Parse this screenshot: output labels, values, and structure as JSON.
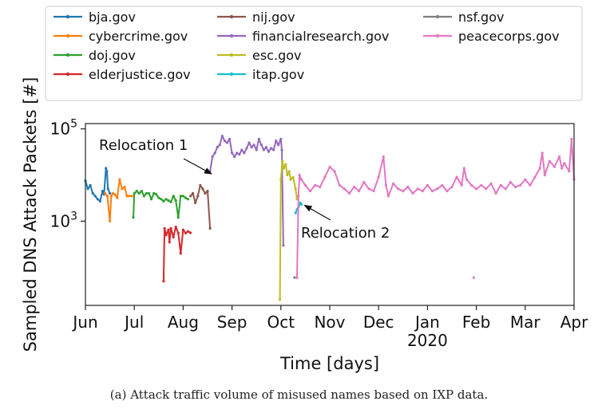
{
  "chart_data": {
    "type": "line",
    "title": "",
    "xlabel": "Time [days]",
    "ylabel": "Sampled DNS Attack Packets [#]",
    "yscale": "log",
    "ylim": [
      15,
      130000
    ],
    "y_ticks": [
      {
        "value": 1000,
        "base": "10",
        "exp": "3"
      },
      {
        "value": 100000,
        "base": "10",
        "exp": "5"
      }
    ],
    "xlim": [
      0,
      10
    ],
    "x_ticks": [
      {
        "pos": 0,
        "label": "Jun"
      },
      {
        "pos": 1,
        "label": "Jul"
      },
      {
        "pos": 2,
        "label": "Aug"
      },
      {
        "pos": 3,
        "label": "Sep"
      },
      {
        "pos": 4,
        "label": "Oct"
      },
      {
        "pos": 5,
        "label": "Nov"
      },
      {
        "pos": 6,
        "label": "Dec"
      },
      {
        "pos": 7,
        "label": "Jan"
      },
      {
        "pos": 8,
        "label": "Feb"
      },
      {
        "pos": 9,
        "label": "Mar"
      },
      {
        "pos": 10,
        "label": "Apr"
      }
    ],
    "x_year_label": {
      "pos": 7,
      "label": "2020"
    },
    "annotations": [
      {
        "text": "Relocation 1",
        "target": [
          2.55,
          11000
        ]
      },
      {
        "text": "Relocation 2",
        "target": [
          4.45,
          2300
        ]
      }
    ],
    "series": [
      {
        "name": "bja.gov",
        "color": "#1f77b4",
        "points": [
          [
            0,
            7500
          ],
          [
            0.05,
            5000
          ],
          [
            0.1,
            6000
          ],
          [
            0.15,
            4000
          ],
          [
            0.2,
            3500
          ],
          [
            0.25,
            3000
          ],
          [
            0.3,
            2700
          ],
          [
            0.35,
            4500
          ],
          [
            0.38,
            3800
          ],
          [
            0.42,
            14000
          ],
          [
            0.44,
            12000
          ],
          [
            0.46,
            5000
          ],
          [
            0.5,
            4000
          ]
        ]
      },
      {
        "name": "cybercrime.gov",
        "color": "#ff7f0e",
        "points": [
          [
            0.4,
            4000
          ],
          [
            0.45,
            3500
          ],
          [
            0.5,
            1000
          ],
          [
            0.53,
            3500
          ],
          [
            0.56,
            4000
          ],
          [
            0.6,
            3800
          ],
          [
            0.65,
            3200
          ],
          [
            0.7,
            8000
          ],
          [
            0.75,
            5000
          ],
          [
            0.8,
            5500
          ],
          [
            0.85,
            3500
          ],
          [
            0.9,
            3500
          ],
          [
            0.95,
            3500
          ]
        ]
      },
      {
        "name": "doj.gov",
        "color": "#2ca02c",
        "points": [
          [
            0.98,
            1200
          ],
          [
            1,
            4000
          ],
          [
            1.05,
            4500
          ],
          [
            1.1,
            4000
          ],
          [
            1.15,
            4500
          ],
          [
            1.2,
            3500
          ],
          [
            1.25,
            4000
          ],
          [
            1.3,
            4000
          ],
          [
            1.35,
            3000
          ],
          [
            1.4,
            4000
          ],
          [
            1.45,
            3800
          ],
          [
            1.5,
            3200
          ],
          [
            1.55,
            3000
          ],
          [
            1.6,
            2700
          ],
          [
            1.65,
            3000
          ],
          [
            1.7,
            2800
          ],
          [
            1.75,
            2600
          ],
          [
            1.8,
            3500
          ],
          [
            1.85,
            2800
          ],
          [
            1.9,
            1200
          ],
          [
            1.95,
            3500
          ],
          [
            2,
            3500
          ],
          [
            2.05,
            3200
          ],
          [
            2.1,
            3000
          ]
        ]
      },
      {
        "name": "elderjustice.gov",
        "color": "#d62728",
        "points": [
          [
            1.6,
            50
          ],
          [
            1.62,
            700
          ],
          [
            1.65,
            500
          ],
          [
            1.7,
            650
          ],
          [
            1.72,
            350
          ],
          [
            1.75,
            700
          ],
          [
            1.8,
            450
          ],
          [
            1.85,
            750
          ],
          [
            1.9,
            550
          ],
          [
            1.95,
            200
          ],
          [
            2,
            650
          ],
          [
            2.05,
            550
          ],
          [
            2.1,
            600
          ],
          [
            2.15,
            560
          ]
        ]
      },
      {
        "name": "nij.gov",
        "color": "#8c564b",
        "points": [
          [
            2.15,
            3500
          ],
          [
            2.2,
            4000
          ],
          [
            2.25,
            2500
          ],
          [
            2.3,
            3500
          ],
          [
            2.35,
            6000
          ],
          [
            2.4,
            5000
          ],
          [
            2.45,
            4000
          ],
          [
            2.5,
            4500
          ],
          [
            2.55,
            700
          ]
        ]
      },
      {
        "name": "financialresearch.gov",
        "color": "#9467bd",
        "points": [
          [
            2.55,
            12000
          ],
          [
            2.6,
            25000
          ],
          [
            2.65,
            30000
          ],
          [
            2.7,
            40000
          ],
          [
            2.75,
            45000
          ],
          [
            2.8,
            70000
          ],
          [
            2.85,
            55000
          ],
          [
            2.9,
            50000
          ],
          [
            2.95,
            60000
          ],
          [
            3,
            30000
          ],
          [
            3.05,
            25000
          ],
          [
            3.1,
            30000
          ],
          [
            3.15,
            28000
          ],
          [
            3.2,
            35000
          ],
          [
            3.25,
            30000
          ],
          [
            3.3,
            38000
          ],
          [
            3.35,
            50000
          ],
          [
            3.4,
            40000
          ],
          [
            3.45,
            45000
          ],
          [
            3.5,
            35000
          ],
          [
            3.55,
            60000
          ],
          [
            3.6,
            45000
          ],
          [
            3.65,
            35000
          ],
          [
            3.7,
            40000
          ],
          [
            3.75,
            32000
          ],
          [
            3.8,
            38000
          ],
          [
            3.85,
            35000
          ],
          [
            3.9,
            55000
          ],
          [
            3.95,
            45000
          ],
          [
            4,
            60000
          ],
          [
            4.02,
            35000
          ],
          [
            4.05,
            300
          ]
        ]
      },
      {
        "name": "esc.gov",
        "color": "#bcbd22",
        "points": [
          [
            3.98,
            20
          ],
          [
            4,
            8000
          ],
          [
            4.03,
            20000
          ],
          [
            4.06,
            14000
          ],
          [
            4.1,
            17000
          ],
          [
            4.13,
            10000
          ],
          [
            4.17,
            12000
          ],
          [
            4.2,
            8000
          ],
          [
            4.25,
            9000
          ],
          [
            4.3,
            5000
          ],
          [
            4.33,
            3000
          ]
        ]
      },
      {
        "name": "itap.gov",
        "color": "#17becf",
        "points": [
          [
            4.3,
            1500
          ],
          [
            4.33,
            1800
          ],
          [
            4.36,
            2000
          ],
          [
            4.4,
            2500
          ],
          [
            4.42,
            2300
          ]
        ]
      },
      {
        "name": "nsf.gov",
        "color": "#7f7f7f",
        "points": [
          [
            4.28,
            60
          ]
        ]
      },
      {
        "name": "peacecorps.gov",
        "color": "#e377c2",
        "points": [
          [
            4.33,
            60
          ],
          [
            4.36,
            3500
          ],
          [
            4.38,
            10000
          ],
          [
            4.42,
            8000
          ],
          [
            4.5,
            6000
          ],
          [
            4.6,
            4500
          ],
          [
            4.7,
            6000
          ],
          [
            4.8,
            5500
          ],
          [
            4.9,
            9000
          ],
          [
            5,
            15000
          ],
          [
            5.1,
            12000
          ],
          [
            5.2,
            6000
          ],
          [
            5.3,
            5000
          ],
          [
            5.4,
            4000
          ],
          [
            5.5,
            5500
          ],
          [
            5.6,
            4500
          ],
          [
            5.7,
            7000
          ],
          [
            5.8,
            5000
          ],
          [
            5.9,
            4500
          ],
          [
            6,
            9000
          ],
          [
            6.1,
            25000
          ],
          [
            6.15,
            6000
          ],
          [
            6.2,
            3500
          ],
          [
            6.3,
            6500
          ],
          [
            6.4,
            5000
          ],
          [
            6.5,
            4500
          ],
          [
            6.6,
            5500
          ],
          [
            6.7,
            4000
          ],
          [
            6.8,
            5000
          ],
          [
            6.9,
            4500
          ],
          [
            7,
            6000
          ],
          [
            7.1,
            4500
          ],
          [
            7.2,
            5000
          ],
          [
            7.3,
            6000
          ],
          [
            7.4,
            4500
          ],
          [
            7.5,
            5500
          ],
          [
            7.6,
            9000
          ],
          [
            7.7,
            6000
          ],
          [
            7.75,
            14000
          ],
          [
            7.8,
            8000
          ],
          [
            7.9,
            6000
          ],
          [
            8,
            5000
          ],
          [
            8.1,
            6000
          ],
          [
            8.2,
            5000
          ],
          [
            8.3,
            6500
          ],
          [
            8.4,
            4000
          ],
          [
            8.5,
            6000
          ],
          [
            8.6,
            5000
          ],
          [
            8.7,
            7000
          ],
          [
            8.8,
            5500
          ],
          [
            8.9,
            6000
          ],
          [
            9,
            8000
          ],
          [
            9.1,
            6000
          ],
          [
            9.2,
            9000
          ],
          [
            9.3,
            14000
          ],
          [
            9.35,
            30000
          ],
          [
            9.4,
            10000
          ],
          [
            9.5,
            20000
          ],
          [
            9.6,
            15000
          ],
          [
            9.7,
            25000
          ],
          [
            9.75,
            14000
          ],
          [
            9.8,
            18000
          ],
          [
            9.9,
            12000
          ],
          [
            9.95,
            60000
          ],
          [
            10,
            8000
          ]
        ]
      },
      {
        "name": "peacecorps.gov",
        "color": "#e377c2",
        "legend": false,
        "points": [
          [
            7.95,
            60
          ]
        ]
      }
    ]
  },
  "caption": "(a)  Attack traffic volume of misused names based on IXP data."
}
